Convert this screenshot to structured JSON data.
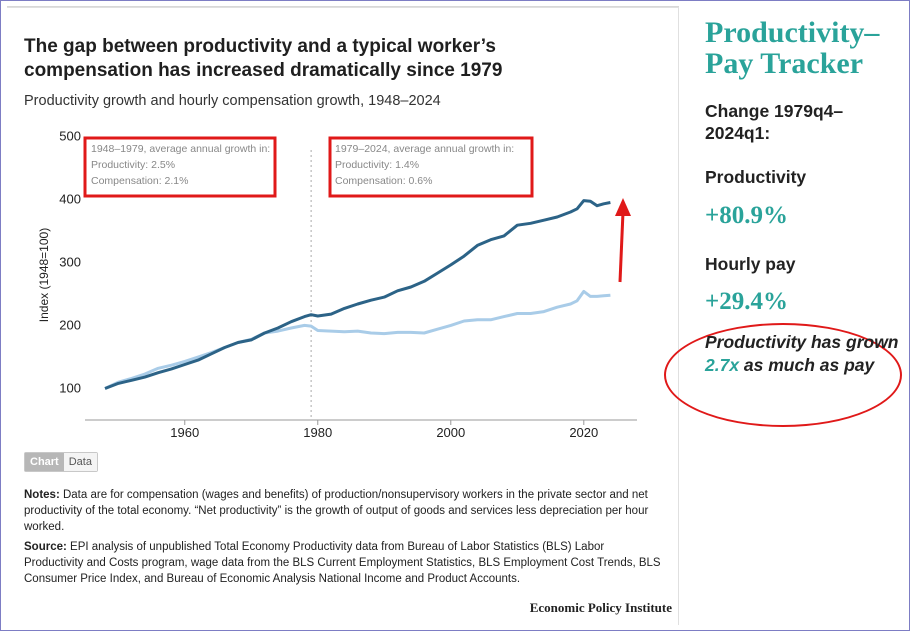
{
  "chart": {
    "title": "The gap between productivity and a typical worker’s compensation has increased dramatically since 1979",
    "subtitle": "Productivity growth and hourly compensation growth, 1948–2024",
    "annotations": [
      {
        "line1": "1948–1979, average annual growth in:",
        "line2": "Productivity: 2.5%",
        "line3": "Compensation: 2.1%"
      },
      {
        "line1": "1979–2024, average annual growth in:",
        "line2": "Productivity: 1.4%",
        "line3": "Compensation: 0.6%"
      }
    ]
  },
  "toggle": {
    "chart_label": "Chart",
    "data_label": "Data"
  },
  "notes": {
    "notes_label": "Notes:",
    "notes_text": " Data are for compensation (wages and benefits) of production/nonsupervisory workers in the private sector and net productivity of the total economy. “Net productivity” is the growth of output of goods and services less depreciation per hour worked.",
    "source_label": "Source:",
    "source_text": " EPI analysis of unpublished Total Economy Productivity data from Bureau of Labor Statistics (BLS) Labor Productivity and Costs program, wage data from the BLS Current Employment Statistics, BLS Employment Cost Trends, BLS Consumer Price Index, and Bureau of Economic Analysis National Income and Product Accounts."
  },
  "footer": {
    "org": "Economic Policy Institute"
  },
  "tracker": {
    "title_line1": "Productivity–",
    "title_line2": "Pay Tracker",
    "change_label_line1": "Change 1979q4–",
    "change_label_line2": "2024q1:",
    "productivity_label": "Productivity",
    "productivity_value": "+80.9%",
    "pay_label": "Hourly pay",
    "pay_value": "+29.4%",
    "note_part1": "Productivity has grown ",
    "note_highlight": "2.7x",
    "note_part2": " as much as pay"
  },
  "colors": {
    "productivity_line": "#2c6387",
    "compensation_line": "#a9cce8",
    "accent": "#2aa39a",
    "highlight_red": "#e01919"
  },
  "chart_data": {
    "type": "line",
    "title": "The gap between productivity and a typical worker’s compensation has increased dramatically since 1979",
    "subtitle": "Productivity growth and hourly compensation growth, 1948–2024",
    "xlabel": "",
    "ylabel": "Index (1948=100)",
    "xlim": [
      1945,
      2028
    ],
    "ylim": [
      50,
      510
    ],
    "xticks": [
      1960,
      1980,
      2000,
      2020
    ],
    "yticks": [
      100,
      200,
      300,
      400,
      500
    ],
    "vertical_reference": 1979,
    "series": [
      {
        "name": "Productivity",
        "x": [
          1948,
          1950,
          1952,
          1954,
          1956,
          1958,
          1960,
          1962,
          1964,
          1966,
          1968,
          1970,
          1972,
          1974,
          1976,
          1978,
          1979,
          1980,
          1982,
          1984,
          1986,
          1988,
          1990,
          1992,
          1994,
          1996,
          1998,
          2000,
          2002,
          2004,
          2006,
          2008,
          2010,
          2012,
          2014,
          2016,
          2018,
          2019,
          2020,
          2021,
          2022,
          2023,
          2024
        ],
        "values": [
          100,
          108,
          113,
          118,
          125,
          131,
          138,
          145,
          155,
          165,
          173,
          177,
          188,
          196,
          206,
          214,
          217,
          215,
          218,
          227,
          234,
          240,
          245,
          255,
          261,
          270,
          283,
          296,
          310,
          327,
          336,
          342,
          359,
          362,
          367,
          372,
          380,
          385,
          398,
          397,
          390,
          393,
          395
        ]
      },
      {
        "name": "Hourly compensation",
        "x": [
          1948,
          1950,
          1952,
          1954,
          1956,
          1958,
          1960,
          1962,
          1964,
          1966,
          1968,
          1970,
          1972,
          1974,
          1976,
          1978,
          1979,
          1980,
          1982,
          1984,
          1986,
          1988,
          1990,
          1992,
          1994,
          1996,
          1998,
          2000,
          2002,
          2004,
          2006,
          2008,
          2010,
          2012,
          2014,
          2016,
          2018,
          2019,
          2020,
          2021,
          2022,
          2023,
          2024
        ],
        "values": [
          100,
          110,
          116,
          123,
          132,
          137,
          143,
          150,
          157,
          165,
          173,
          178,
          188,
          191,
          196,
          200,
          199,
          192,
          191,
          190,
          191,
          188,
          187,
          189,
          189,
          188,
          194,
          200,
          207,
          209,
          209,
          214,
          219,
          219,
          222,
          229,
          234,
          239,
          254,
          246,
          246,
          247,
          248
        ]
      }
    ]
  }
}
